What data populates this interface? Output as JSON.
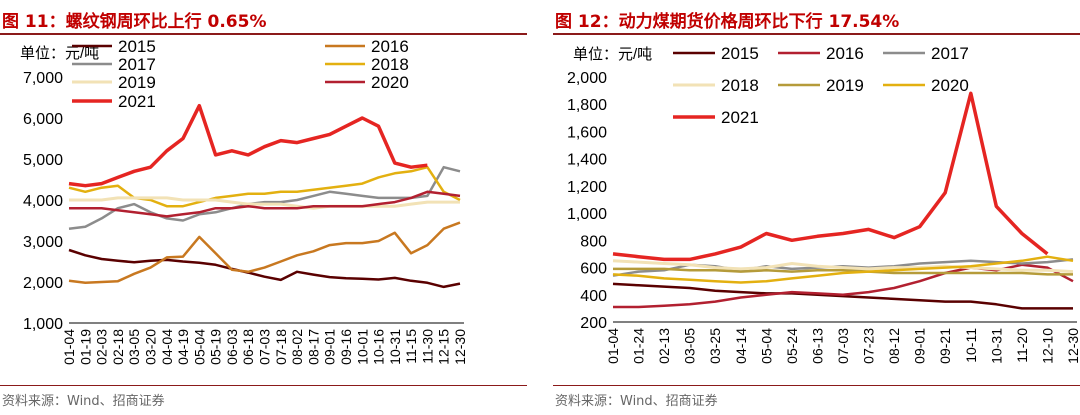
{
  "panels": [
    {
      "title": "图 11：螺纹钢周环比上行 0.65%",
      "source": "资料来源：Wind、招商证券",
      "unit_label": "单位：元/吨"
    },
    {
      "title": "图 12：动力煤期货价格周环比下行 17.54%",
      "source": "资料来源：Wind、招商证券",
      "unit_label": "单位：元/吨"
    }
  ],
  "chart_data": [
    {
      "type": "line",
      "title": "螺纹钢周环比上行 0.65%",
      "ylabel": "单位：元/吨",
      "ylim": [
        1000,
        7000
      ],
      "yticks": [
        "1,000",
        "2,000",
        "3,000",
        "4,000",
        "5,000",
        "6,000",
        "7,000"
      ],
      "x": [
        "01-04",
        "01-19",
        "02-03",
        "02-18",
        "03-05",
        "03-20",
        "04-04",
        "04-19",
        "05-04",
        "05-19",
        "06-03",
        "06-18",
        "07-03",
        "07-18",
        "08-02",
        "08-17",
        "09-01",
        "09-16",
        "10-01",
        "10-16",
        "10-31",
        "11-15",
        "11-30",
        "12-15",
        "12-30"
      ],
      "legend_position": "top-left",
      "series": [
        {
          "name": "2015",
          "color": "#5a0000",
          "width": 2.5,
          "values": [
            2780,
            2650,
            2560,
            2520,
            2480,
            2520,
            2540,
            2500,
            2470,
            2420,
            2320,
            2230,
            2130,
            2050,
            2250,
            2180,
            2120,
            2090,
            2080,
            2060,
            2100,
            2030,
            1980,
            1880,
            1960
          ]
        },
        {
          "name": "2016",
          "color": "#c87820",
          "width": 2.5,
          "values": [
            2030,
            1980,
            2000,
            2020,
            2200,
            2350,
            2600,
            2620,
            3100,
            2700,
            2300,
            2250,
            2350,
            2500,
            2650,
            2750,
            2900,
            2950,
            2950,
            3000,
            3200,
            2700,
            2900,
            3300,
            3450
          ]
        },
        {
          "name": "2017",
          "color": "#8c8c8c",
          "width": 2.5,
          "values": [
            3300,
            3350,
            3550,
            3800,
            3900,
            3700,
            3550,
            3500,
            3650,
            3700,
            3800,
            3900,
            3950,
            3950,
            4000,
            4100,
            4200,
            4150,
            4100,
            4050,
            4050,
            4050,
            4100,
            4800,
            4700
          ]
        },
        {
          "name": "2018",
          "color": "#e3b010",
          "width": 2.5,
          "values": [
            4300,
            4200,
            4300,
            4350,
            4050,
            4000,
            3850,
            3850,
            3950,
            4050,
            4100,
            4150,
            4150,
            4200,
            4200,
            4250,
            4300,
            4350,
            4400,
            4550,
            4650,
            4700,
            4800,
            4200,
            4000
          ]
        },
        {
          "name": "2019",
          "color": "#f2e2b6",
          "width": 3,
          "values": [
            4000,
            4000,
            4000,
            4050,
            4050,
            4050,
            4050,
            4000,
            4000,
            4000,
            3950,
            3900,
            3900,
            3900,
            3850,
            3800,
            3850,
            3850,
            3850,
            3850,
            3850,
            3900,
            3950,
            3950,
            3950
          ]
        },
        {
          "name": "2020",
          "color": "#b22030",
          "width": 2.5,
          "values": [
            3800,
            3800,
            3800,
            3750,
            3700,
            3650,
            3600,
            3650,
            3700,
            3800,
            3800,
            3850,
            3800,
            3800,
            3800,
            3850,
            3850,
            3850,
            3850,
            3900,
            3950,
            4050,
            4200,
            4150,
            4100
          ]
        },
        {
          "name": "2021",
          "color": "#e52522",
          "width": 3.5,
          "values": [
            4400,
            4350,
            4400,
            4550,
            4700,
            4800,
            5200,
            5500,
            6300,
            5100,
            5200,
            5100,
            5300,
            5450,
            5400,
            5500,
            5600,
            5800,
            6000,
            5800,
            4900,
            4800,
            4850,
            null,
            null
          ]
        }
      ]
    },
    {
      "type": "line",
      "title": "动力煤期货价格周环比下行 17.54%",
      "ylabel": "单位：元/吨",
      "ylim": [
        200,
        2000
      ],
      "yticks": [
        "200",
        "400",
        "600",
        "800",
        "1,000",
        "1,200",
        "1,400",
        "1,600",
        "1,800",
        "2,000"
      ],
      "x": [
        "01-04",
        "01-24",
        "02-13",
        "03-05",
        "03-25",
        "04-14",
        "05-04",
        "05-24",
        "06-13",
        "07-03",
        "07-23",
        "08-12",
        "09-01",
        "09-21",
        "10-11",
        "10-31",
        "11-20",
        "12-10",
        "12-30"
      ],
      "legend_position": "top",
      "series": [
        {
          "name": "2015",
          "color": "#5a0000",
          "width": 2.5,
          "values": [
            480,
            470,
            460,
            450,
            430,
            420,
            410,
            410,
            400,
            390,
            380,
            370,
            360,
            350,
            350,
            330,
            300,
            300,
            300
          ]
        },
        {
          "name": "2016",
          "color": "#b22030",
          "width": 2.5,
          "values": [
            310,
            310,
            320,
            330,
            350,
            380,
            400,
            420,
            410,
            400,
            420,
            450,
            500,
            560,
            600,
            580,
            620,
            600,
            500
          ]
        },
        {
          "name": "2017",
          "color": "#8c8c8c",
          "width": 2.5,
          "values": [
            540,
            570,
            580,
            620,
            610,
            580,
            610,
            590,
            600,
            610,
            600,
            610,
            630,
            640,
            650,
            640,
            630,
            640,
            660
          ]
        },
        {
          "name": "2018",
          "color": "#f2e2b6",
          "width": 3,
          "values": [
            650,
            640,
            630,
            620,
            600,
            590,
            600,
            630,
            610,
            600,
            590,
            600,
            600,
            610,
            600,
            590,
            580,
            580,
            570
          ]
        },
        {
          "name": "2019",
          "color": "#b59b3a",
          "width": 2.5,
          "values": [
            590,
            590,
            590,
            580,
            580,
            570,
            580,
            570,
            580,
            580,
            570,
            560,
            560,
            560,
            560,
            560,
            560,
            550,
            550
          ]
        },
        {
          "name": "2020",
          "color": "#e3b010",
          "width": 2.5,
          "values": [
            550,
            540,
            520,
            510,
            500,
            490,
            500,
            520,
            540,
            560,
            570,
            580,
            590,
            600,
            610,
            630,
            650,
            680,
            650
          ]
        },
        {
          "name": "2021",
          "color": "#e52522",
          "width": 3.5,
          "values": [
            700,
            680,
            660,
            660,
            700,
            750,
            850,
            800,
            830,
            850,
            880,
            820,
            900,
            1150,
            1880,
            1050,
            850,
            700,
            null
          ]
        }
      ]
    }
  ]
}
